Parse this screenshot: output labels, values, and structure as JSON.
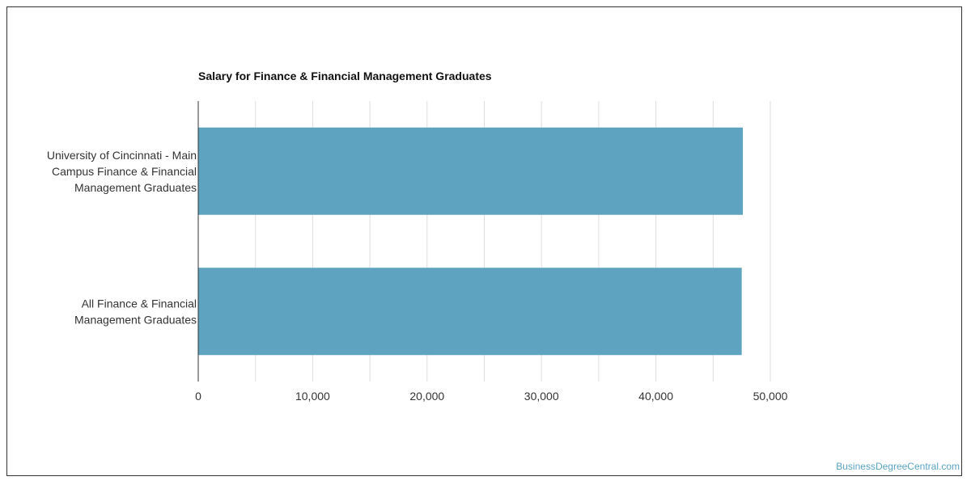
{
  "chart_data": {
    "type": "bar",
    "orientation": "horizontal",
    "title": "Salary for Finance & Financial Management Graduates",
    "categories": [
      [
        "University of Cincinnati - Main",
        "Campus Finance & Financial",
        "Management Graduates"
      ],
      [
        "All Finance & Financial",
        "Management Graduates"
      ]
    ],
    "values": [
      47600,
      47500
    ],
    "xlim": [
      0,
      50000
    ],
    "x_ticks": [
      0,
      10000,
      20000,
      30000,
      40000,
      50000
    ],
    "x_tick_labels": [
      "0",
      "10,000",
      "20,000",
      "30,000",
      "40,000",
      "50,000"
    ],
    "bar_color": "#5ea3bf",
    "grid": true,
    "xlabel": "",
    "ylabel": ""
  },
  "watermark": "BusinessDegreeCentral.com"
}
